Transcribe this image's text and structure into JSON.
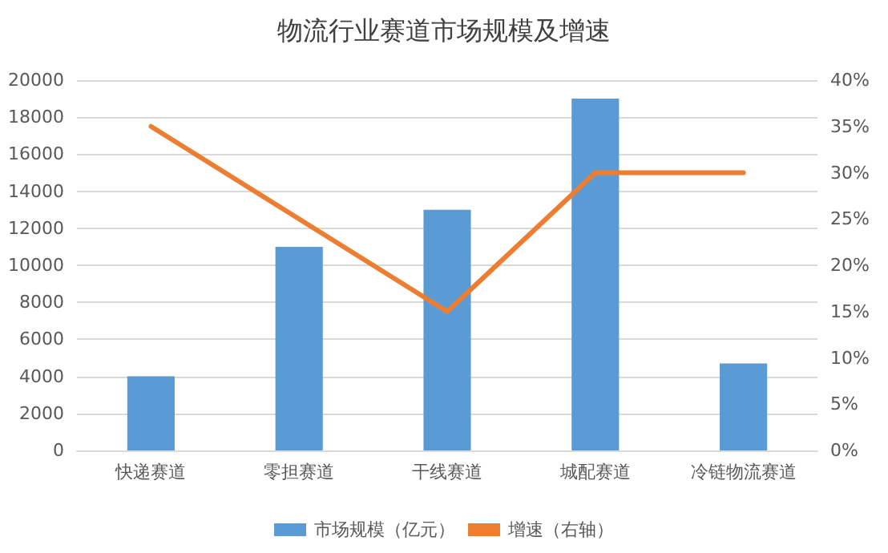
{
  "chart_data": {
    "type": "bar",
    "title": "物流行业赛道市场规模及增速",
    "categories": [
      "快递赛道",
      "零担赛道",
      "干线赛道",
      "城配赛道",
      "冷链物流赛道"
    ],
    "series": [
      {
        "name": "市场规模（亿元）",
        "color": "#5b9bd5",
        "values": [
          4000,
          11000,
          13000,
          19000,
          4700
        ]
      },
      {
        "name": "增速（右轴）",
        "type": "line",
        "axis": "y2",
        "color": "#ed7d31",
        "values": [
          35,
          25,
          15,
          30,
          30
        ]
      }
    ],
    "ylim": [
      0,
      20000
    ],
    "yticks": [
      0,
      2000,
      4000,
      6000,
      8000,
      10000,
      12000,
      14000,
      16000,
      18000,
      20000
    ],
    "y2lim": [
      0,
      40
    ],
    "y2ticks": [
      {
        "value": 0,
        "label": "0%"
      },
      {
        "value": 5,
        "label": "5%"
      },
      {
        "value": 10,
        "label": "10%"
      },
      {
        "value": 15,
        "label": "15%"
      },
      {
        "value": 20,
        "label": "20%"
      },
      {
        "value": 25,
        "label": "25%"
      },
      {
        "value": 30,
        "label": "30%"
      },
      {
        "value": 35,
        "label": "35%"
      },
      {
        "value": 40,
        "label": "40%"
      }
    ],
    "grid": "y",
    "legend": "bottom",
    "marker": "none"
  }
}
